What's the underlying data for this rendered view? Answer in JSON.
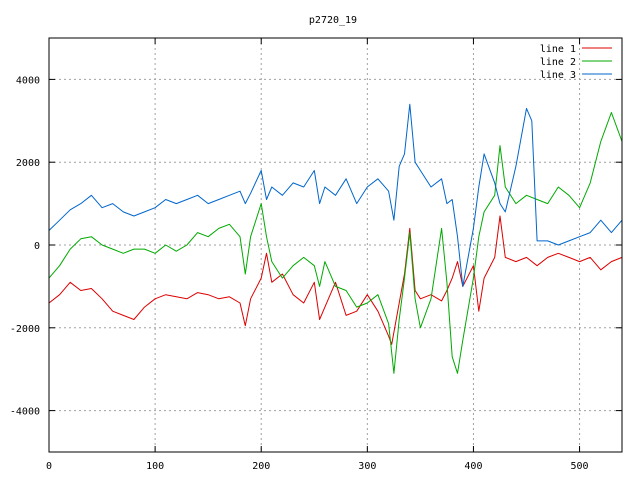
{
  "chart_data": {
    "type": "line",
    "title": "p2720_19",
    "xlabel": "",
    "ylabel": "",
    "xlim": [
      0,
      540
    ],
    "ylim": [
      -5000,
      5000
    ],
    "xticks": [
      0,
      100,
      200,
      300,
      400,
      500
    ],
    "yticks": [
      -4000,
      -2000,
      0,
      2000,
      4000
    ],
    "grid": true,
    "legend_position": "top-right",
    "series": [
      {
        "name": "line 1",
        "color": "#dd0000",
        "x": [
          0,
          10,
          20,
          30,
          40,
          50,
          60,
          70,
          80,
          90,
          100,
          110,
          120,
          130,
          140,
          150,
          160,
          170,
          180,
          185,
          190,
          200,
          205,
          210,
          220,
          230,
          240,
          250,
          255,
          260,
          270,
          280,
          290,
          300,
          310,
          320,
          323,
          330,
          335,
          340,
          345,
          350,
          360,
          370,
          375,
          380,
          385,
          390,
          400,
          405,
          410,
          420,
          425,
          430,
          440,
          450,
          460,
          470,
          480,
          490,
          500,
          510,
          520,
          530,
          540
        ],
        "y": [
          -1400,
          -1200,
          -900,
          -1100,
          -1050,
          -1300,
          -1600,
          -1700,
          -1800,
          -1500,
          -1300,
          -1200,
          -1250,
          -1300,
          -1150,
          -1200,
          -1300,
          -1250,
          -1400,
          -1950,
          -1300,
          -800,
          -200,
          -900,
          -700,
          -1200,
          -1400,
          -900,
          -1800,
          -1500,
          -900,
          -1700,
          -1600,
          -1200,
          -1600,
          -2200,
          -2400,
          -1400,
          -700,
          400,
          -1100,
          -1300,
          -1200,
          -1350,
          -1100,
          -800,
          -400,
          -1000,
          -500,
          -1600,
          -800,
          -300,
          700,
          -300,
          -400,
          -300,
          -500,
          -300,
          -200,
          -300,
          -400,
          -300,
          -600,
          -400,
          -300
        ]
      },
      {
        "name": "line 2",
        "color": "#00aa00",
        "x": [
          0,
          10,
          20,
          30,
          40,
          50,
          60,
          70,
          80,
          90,
          100,
          110,
          120,
          130,
          140,
          150,
          160,
          170,
          180,
          185,
          190,
          200,
          205,
          210,
          220,
          230,
          240,
          250,
          255,
          260,
          270,
          280,
          290,
          300,
          310,
          320,
          325,
          330,
          335,
          340,
          345,
          350,
          360,
          370,
          375,
          380,
          385,
          390,
          400,
          405,
          410,
          420,
          425,
          430,
          440,
          450,
          460,
          470,
          480,
          490,
          500,
          510,
          520,
          530,
          540
        ],
        "y": [
          -800,
          -500,
          -100,
          150,
          200,
          0,
          -100,
          -200,
          -100,
          -100,
          -200,
          0,
          -150,
          0,
          300,
          200,
          400,
          500,
          200,
          -700,
          200,
          1000,
          200,
          -400,
          -800,
          -500,
          -300,
          -500,
          -1000,
          -400,
          -1000,
          -1100,
          -1500,
          -1400,
          -1200,
          -1900,
          -3100,
          -1800,
          -800,
          300,
          -1300,
          -2000,
          -1300,
          400,
          -900,
          -2700,
          -3100,
          -2300,
          -800,
          200,
          800,
          1200,
          2400,
          1400,
          1000,
          1200,
          1100,
          1000,
          1400,
          1200,
          900,
          1500,
          2500,
          3200,
          2500
        ]
      },
      {
        "name": "line 3",
        "color": "#0066cc",
        "x": [
          0,
          10,
          20,
          30,
          40,
          50,
          60,
          70,
          80,
          90,
          100,
          110,
          120,
          130,
          140,
          150,
          160,
          170,
          180,
          185,
          190,
          200,
          205,
          210,
          220,
          230,
          240,
          250,
          255,
          260,
          270,
          280,
          290,
          300,
          310,
          320,
          325,
          330,
          335,
          340,
          345,
          350,
          360,
          370,
          375,
          380,
          385,
          390,
          400,
          405,
          410,
          420,
          425,
          430,
          440,
          450,
          455,
          460,
          470,
          480,
          490,
          500,
          510,
          520,
          530,
          540
        ],
        "y": [
          350,
          600,
          850,
          1000,
          1200,
          900,
          1000,
          800,
          700,
          800,
          900,
          1100,
          1000,
          1100,
          1200,
          1000,
          1100,
          1200,
          1300,
          1000,
          1250,
          1800,
          1100,
          1400,
          1200,
          1500,
          1400,
          1800,
          1000,
          1400,
          1200,
          1600,
          1000,
          1400,
          1600,
          1300,
          600,
          1900,
          2200,
          3400,
          2000,
          1800,
          1400,
          1600,
          1000,
          1100,
          200,
          -1000,
          400,
          1400,
          2200,
          1500,
          1000,
          800,
          1900,
          3300,
          3000,
          100,
          100,
          0,
          100,
          200,
          300,
          600,
          300,
          600
        ]
      }
    ]
  }
}
